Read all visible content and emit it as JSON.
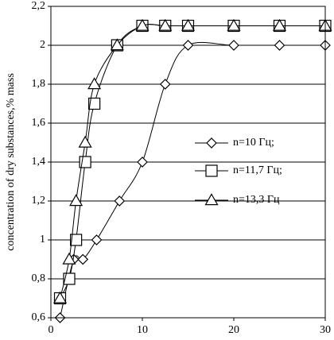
{
  "chart_data": {
    "type": "line",
    "title": "",
    "xlabel": "",
    "ylabel": "concentration of dry substances,% mass",
    "xlim": [
      0,
      30
    ],
    "ylim": [
      0.6,
      2.2
    ],
    "x_ticks": [
      "0",
      "10",
      "20",
      "30"
    ],
    "y_ticks": [
      "0,6",
      "0,8",
      "1",
      "1,2",
      "1,4",
      "1,6",
      "1,8",
      "2",
      "2,2"
    ],
    "grid": "horizontal",
    "legend": "right",
    "series": [
      {
        "name": "n=10  Гц;",
        "marker": "diamond",
        "x": [
          1,
          2.5,
          3.5,
          5,
          7.5,
          10,
          12.5,
          15,
          20,
          25,
          30
        ],
        "y": [
          0.6,
          0.9,
          0.9,
          1.0,
          1.2,
          1.4,
          1.8,
          2.0,
          2.0,
          2.0,
          2.0
        ]
      },
      {
        "name": "n=11,7  Гц;",
        "marker": "square",
        "x": [
          1,
          2,
          2.75,
          3.75,
          4.75,
          7.25,
          10,
          12.5,
          15,
          20,
          25,
          30
        ],
        "y": [
          0.7,
          0.8,
          1.0,
          1.4,
          1.7,
          2.0,
          2.1,
          2.1,
          2.1,
          2.1,
          2.1,
          2.1
        ]
      },
      {
        "name": "n=13,3  Гц",
        "marker": "triangle",
        "x": [
          1,
          2,
          2.75,
          3.75,
          4.75,
          7.25,
          10,
          12.5,
          15,
          20,
          25,
          30
        ],
        "y": [
          0.7,
          0.9,
          1.2,
          1.5,
          1.8,
          2.0,
          2.1,
          2.1,
          2.1,
          2.1,
          2.1,
          2.1
        ]
      }
    ]
  }
}
